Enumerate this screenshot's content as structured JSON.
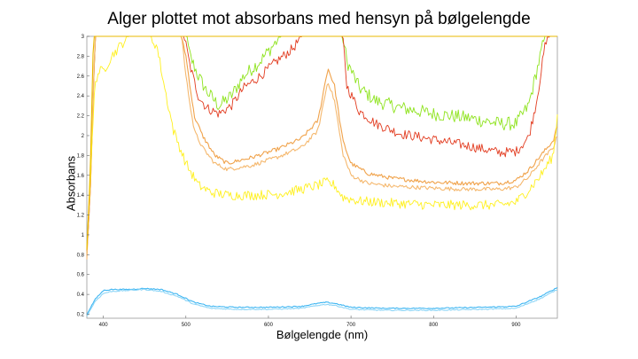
{
  "chart_data": {
    "type": "line",
    "title": "Alger plottet mot absorbans med hensyn på bølgelengde",
    "xlabel": "Bølgelengde (nm)",
    "ylabel": "Absorbans",
    "xlim": [
      380,
      950
    ],
    "ylim": [
      0.16,
      3.0
    ],
    "xticks": [
      400,
      500,
      600,
      700,
      800,
      900
    ],
    "yticks": [
      0.2,
      0.4,
      0.6,
      0.8,
      1,
      1.2,
      1.4,
      1.6,
      1.8,
      2,
      2.2,
      2.4,
      2.6,
      2.8,
      3
    ],
    "grid": false,
    "legend": "none",
    "series": [
      {
        "color": "#8ee31d",
        "noise": 0.07,
        "points": [
          [
            380,
            0.8
          ],
          [
            385,
            1.6
          ],
          [
            390,
            3
          ],
          [
            480,
            3
          ],
          [
            485,
            3
          ],
          [
            500,
            3
          ],
          [
            505,
            2.8
          ],
          [
            515,
            2.6
          ],
          [
            525,
            2.45
          ],
          [
            540,
            2.3
          ],
          [
            555,
            2.4
          ],
          [
            570,
            2.6
          ],
          [
            590,
            2.75
          ],
          [
            610,
            2.95
          ],
          [
            615,
            3
          ],
          [
            640,
            3
          ],
          [
            655,
            3
          ],
          [
            670,
            3
          ],
          [
            680,
            3
          ],
          [
            690,
            3
          ],
          [
            695,
            2.75
          ],
          [
            710,
            2.48
          ],
          [
            730,
            2.35
          ],
          [
            760,
            2.28
          ],
          [
            800,
            2.22
          ],
          [
            840,
            2.18
          ],
          [
            880,
            2.12
          ],
          [
            900,
            2.12
          ],
          [
            915,
            2.3
          ],
          [
            925,
            2.65
          ],
          [
            935,
            3
          ],
          [
            950,
            3
          ]
        ]
      },
      {
        "color": "#e23b1f",
        "noise": 0.05,
        "points": [
          [
            380,
            0.8
          ],
          [
            385,
            1.6
          ],
          [
            390,
            3
          ],
          [
            480,
            3
          ],
          [
            490,
            3
          ],
          [
            498,
            3
          ],
          [
            505,
            2.7
          ],
          [
            515,
            2.4
          ],
          [
            525,
            2.28
          ],
          [
            540,
            2.22
          ],
          [
            555,
            2.3
          ],
          [
            570,
            2.48
          ],
          [
            590,
            2.6
          ],
          [
            610,
            2.75
          ],
          [
            630,
            2.88
          ],
          [
            640,
            3
          ],
          [
            680,
            3
          ],
          [
            690,
            3
          ],
          [
            695,
            2.5
          ],
          [
            710,
            2.25
          ],
          [
            730,
            2.12
          ],
          [
            760,
            2.02
          ],
          [
            800,
            1.96
          ],
          [
            840,
            1.9
          ],
          [
            880,
            1.83
          ],
          [
            900,
            1.84
          ],
          [
            915,
            1.98
          ],
          [
            925,
            2.35
          ],
          [
            935,
            2.9
          ],
          [
            940,
            3
          ],
          [
            950,
            3
          ]
        ]
      },
      {
        "color": "#f0a24a",
        "noise": 0.02,
        "points": [
          [
            380,
            0.8
          ],
          [
            385,
            1.7
          ],
          [
            390,
            3
          ],
          [
            475,
            3
          ],
          [
            485,
            3
          ],
          [
            495,
            3
          ],
          [
            500,
            2.8
          ],
          [
            510,
            2.2
          ],
          [
            520,
            2.0
          ],
          [
            535,
            1.8
          ],
          [
            550,
            1.72
          ],
          [
            580,
            1.78
          ],
          [
            610,
            1.86
          ],
          [
            640,
            1.97
          ],
          [
            660,
            2.15
          ],
          [
            672,
            2.68
          ],
          [
            680,
            2.5
          ],
          [
            690,
            1.95
          ],
          [
            700,
            1.72
          ],
          [
            720,
            1.62
          ],
          [
            750,
            1.57
          ],
          [
            800,
            1.53
          ],
          [
            840,
            1.52
          ],
          [
            880,
            1.52
          ],
          [
            900,
            1.55
          ],
          [
            915,
            1.65
          ],
          [
            930,
            1.8
          ],
          [
            945,
            1.95
          ],
          [
            950,
            2.1
          ]
        ]
      },
      {
        "color": "#f5b86e",
        "noise": 0.02,
        "points": [
          [
            380,
            0.75
          ],
          [
            385,
            1.6
          ],
          [
            390,
            3
          ],
          [
            475,
            3
          ],
          [
            485,
            3
          ],
          [
            495,
            3
          ],
          [
            500,
            2.6
          ],
          [
            510,
            2.05
          ],
          [
            520,
            1.88
          ],
          [
            535,
            1.72
          ],
          [
            550,
            1.66
          ],
          [
            580,
            1.7
          ],
          [
            610,
            1.78
          ],
          [
            640,
            1.88
          ],
          [
            660,
            2.05
          ],
          [
            672,
            2.55
          ],
          [
            680,
            2.35
          ],
          [
            690,
            1.82
          ],
          [
            700,
            1.6
          ],
          [
            720,
            1.52
          ],
          [
            750,
            1.49
          ],
          [
            800,
            1.47
          ],
          [
            840,
            1.46
          ],
          [
            880,
            1.46
          ],
          [
            900,
            1.48
          ],
          [
            915,
            1.58
          ],
          [
            930,
            1.74
          ],
          [
            945,
            1.88
          ],
          [
            950,
            2.0
          ]
        ]
      },
      {
        "color": "#fff01e",
        "noise": 0.05,
        "points": [
          [
            380,
            0.9
          ],
          [
            385,
            1.7
          ],
          [
            390,
            2.55
          ],
          [
            395,
            2.65
          ],
          [
            400,
            2.65
          ],
          [
            410,
            2.8
          ],
          [
            420,
            2.9
          ],
          [
            430,
            3
          ],
          [
            445,
            3
          ],
          [
            455,
            3
          ],
          [
            465,
            2.9
          ],
          [
            475,
            2.45
          ],
          [
            485,
            2.05
          ],
          [
            500,
            1.72
          ],
          [
            515,
            1.5
          ],
          [
            530,
            1.43
          ],
          [
            550,
            1.4
          ],
          [
            580,
            1.4
          ],
          [
            610,
            1.41
          ],
          [
            640,
            1.46
          ],
          [
            660,
            1.5
          ],
          [
            670,
            1.53
          ],
          [
            680,
            1.5
          ],
          [
            690,
            1.38
          ],
          [
            710,
            1.34
          ],
          [
            750,
            1.32
          ],
          [
            800,
            1.3
          ],
          [
            850,
            1.3
          ],
          [
            880,
            1.3
          ],
          [
            900,
            1.33
          ],
          [
            915,
            1.45
          ],
          [
            930,
            1.6
          ],
          [
            945,
            1.8
          ],
          [
            950,
            2.2
          ]
        ]
      },
      {
        "color": "#3fb6f2",
        "noise": 0.005,
        "points": [
          [
            380,
            0.2
          ],
          [
            390,
            0.35
          ],
          [
            400,
            0.44
          ],
          [
            410,
            0.45
          ],
          [
            430,
            0.45
          ],
          [
            450,
            0.46
          ],
          [
            470,
            0.45
          ],
          [
            490,
            0.4
          ],
          [
            510,
            0.32
          ],
          [
            530,
            0.28
          ],
          [
            560,
            0.27
          ],
          [
            600,
            0.27
          ],
          [
            640,
            0.28
          ],
          [
            660,
            0.31
          ],
          [
            670,
            0.32
          ],
          [
            680,
            0.31
          ],
          [
            700,
            0.27
          ],
          [
            740,
            0.26
          ],
          [
            800,
            0.26
          ],
          [
            860,
            0.27
          ],
          [
            900,
            0.28
          ],
          [
            915,
            0.33
          ],
          [
            930,
            0.38
          ],
          [
            950,
            0.47
          ]
        ]
      },
      {
        "color": "#8fd6f7",
        "noise": 0.005,
        "points": [
          [
            380,
            0.18
          ],
          [
            390,
            0.33
          ],
          [
            400,
            0.41
          ],
          [
            410,
            0.43
          ],
          [
            430,
            0.44
          ],
          [
            450,
            0.45
          ],
          [
            470,
            0.43
          ],
          [
            490,
            0.38
          ],
          [
            510,
            0.3
          ],
          [
            530,
            0.26
          ],
          [
            560,
            0.25
          ],
          [
            600,
            0.25
          ],
          [
            640,
            0.26
          ],
          [
            660,
            0.29
          ],
          [
            670,
            0.3
          ],
          [
            680,
            0.29
          ],
          [
            700,
            0.25
          ],
          [
            740,
            0.24
          ],
          [
            800,
            0.24
          ],
          [
            860,
            0.25
          ],
          [
            900,
            0.26
          ],
          [
            915,
            0.31
          ],
          [
            930,
            0.36
          ],
          [
            950,
            0.45
          ]
        ]
      },
      {
        "color": "#e8b800",
        "noise": 0,
        "points": [
          [
            380,
            0.85
          ],
          [
            384,
            1.6
          ],
          [
            388,
            3
          ],
          [
            498,
            3
          ],
          [
            500,
            3
          ]
        ]
      }
    ]
  }
}
